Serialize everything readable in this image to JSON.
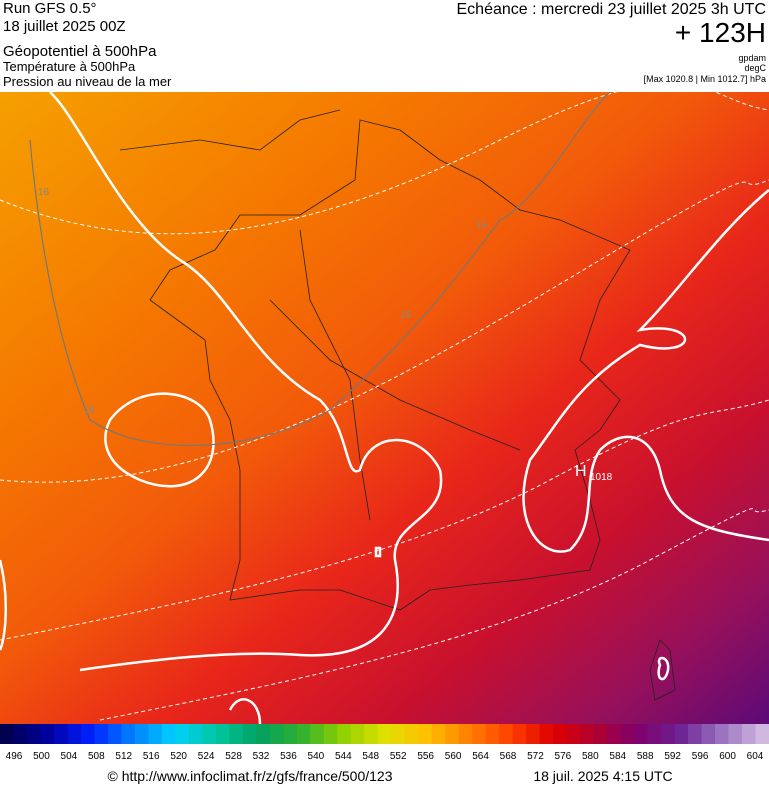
{
  "header": {
    "run": "Run GFS 0.5°",
    "date": "18 juillet 2025 00Z",
    "layer1": "Géopotentiel à 500hPa",
    "layer2": "Température à 500hPa",
    "layer3": "Pression au niveau de la mer",
    "valid": "Echéance : mercredi 23 juillet 2025 3h UTC",
    "lead": "+ 123H",
    "unit1": "gpdam",
    "unit2": "degC",
    "pressure_range": "[Max 1020.8 | Min 1012.7] hPa"
  },
  "map": {
    "contour_labels": [
      "16",
      "16",
      "16",
      "16"
    ],
    "high": {
      "symbol": "H",
      "value": "1018"
    }
  },
  "colorbar": {
    "labels": [
      496,
      500,
      504,
      508,
      512,
      516,
      520,
      524,
      528,
      532,
      536,
      540,
      544,
      548,
      552,
      556,
      560,
      564,
      568,
      572,
      576,
      580,
      584,
      588,
      592,
      596,
      600,
      604
    ]
  },
  "footer": {
    "source": "© http://www.infoclimat.fr/z/gfs/france/500/123",
    "timestamp": "18 juil. 2025  4:15 UTC"
  }
}
